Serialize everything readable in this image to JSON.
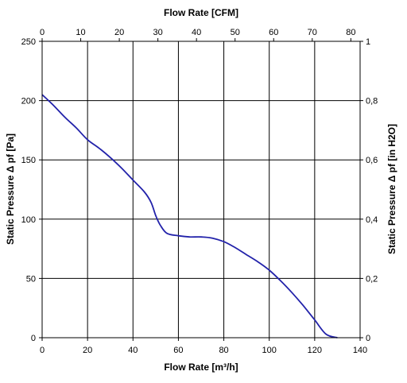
{
  "chart_data": {
    "type": "line",
    "title": "",
    "grid": true,
    "legend": "none",
    "xlabel_bottom": "Flow Rate [m³/h]",
    "xlabel_top": "Flow Rate [CFM]",
    "ylabel_left": "Static Pressure Δ pf [Pa]",
    "ylabel_right": "Static Pressure Δ pf [in H2O]",
    "x_bottom": {
      "range": [
        0,
        140
      ],
      "ticks": [
        0,
        20,
        40,
        60,
        80,
        100,
        120,
        140
      ]
    },
    "x_top": {
      "range": [
        0,
        82.4
      ],
      "ticks": [
        0,
        10,
        20,
        30,
        40,
        50,
        60,
        70,
        80
      ]
    },
    "y_left": {
      "range": [
        0,
        250
      ],
      "ticks": [
        0,
        50,
        100,
        150,
        200,
        250
      ]
    },
    "y_right": {
      "range": [
        0,
        1
      ],
      "ticks": [
        "0",
        "0,2",
        "0,4",
        "0,6",
        "0,8",
        "1"
      ]
    },
    "series": [
      {
        "color": "#2222aa",
        "x": [
          0,
          5,
          10,
          15,
          20,
          25,
          30,
          35,
          40,
          45,
          48,
          50,
          52,
          55,
          60,
          65,
          70,
          75,
          80,
          85,
          90,
          95,
          100,
          105,
          110,
          115,
          120,
          125,
          130
        ],
        "y": [
          205,
          196,
          186,
          177,
          167,
          160,
          152,
          143,
          133,
          123,
          114,
          103,
          95,
          88,
          86,
          85,
          85,
          84,
          81,
          76,
          70,
          64,
          57,
          48,
          38,
          27,
          15,
          3,
          0
        ]
      }
    ]
  }
}
